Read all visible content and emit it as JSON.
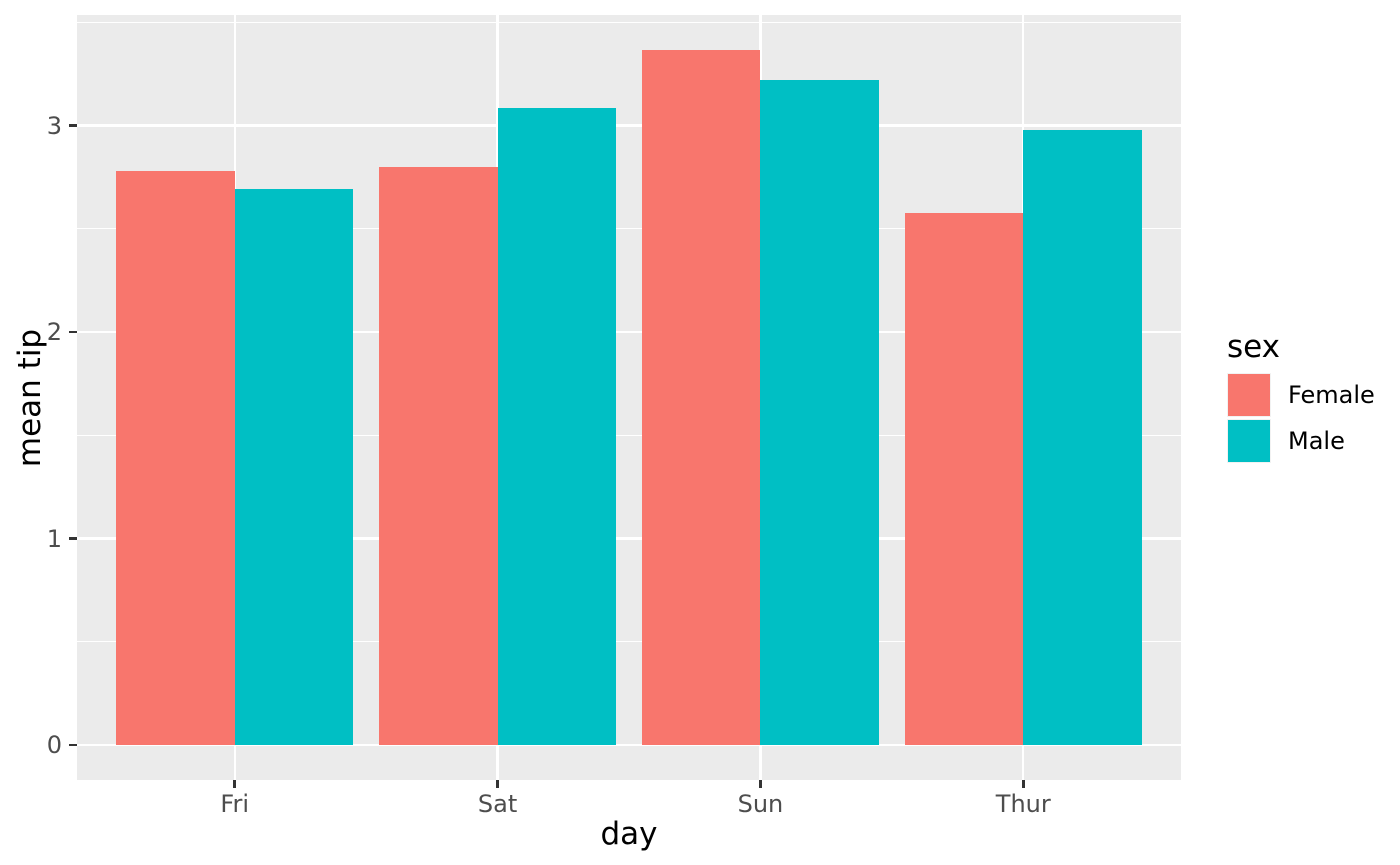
{
  "chart_data": {
    "type": "bar",
    "title": "",
    "xlabel": "day",
    "ylabel": "mean tip",
    "legend_title": "sex",
    "legend_position": "right",
    "categories": [
      "Fri",
      "Sat",
      "Sun",
      "Thur"
    ],
    "series": [
      {
        "name": "Female",
        "color": "#F8766D",
        "values": [
          2.781,
          2.802,
          3.367,
          2.576
        ]
      },
      {
        "name": "Male",
        "color": "#00BFC4",
        "values": [
          2.693,
          3.084,
          3.22,
          2.98
        ]
      }
    ],
    "y_ticks": [
      0,
      1,
      2,
      3
    ],
    "y_minor_ticks": [
      0.5,
      1.5,
      2.5,
      3.5
    ],
    "ylim": [
      -0.169,
      3.536
    ],
    "grid": true,
    "bar_layout": "dodge",
    "bar_width": 0.9
  },
  "theme": {
    "figure_bg": "#FFFFFF",
    "panel_bg": "#EBEBEB",
    "grid_color": "#FFFFFF",
    "tick_label_color": "#4D4D4D",
    "tick_mark_color": "#333333",
    "axis_title_color": "#000000",
    "legend_key_bg": "#F2F2F2",
    "legend_text_color": "#000000"
  }
}
